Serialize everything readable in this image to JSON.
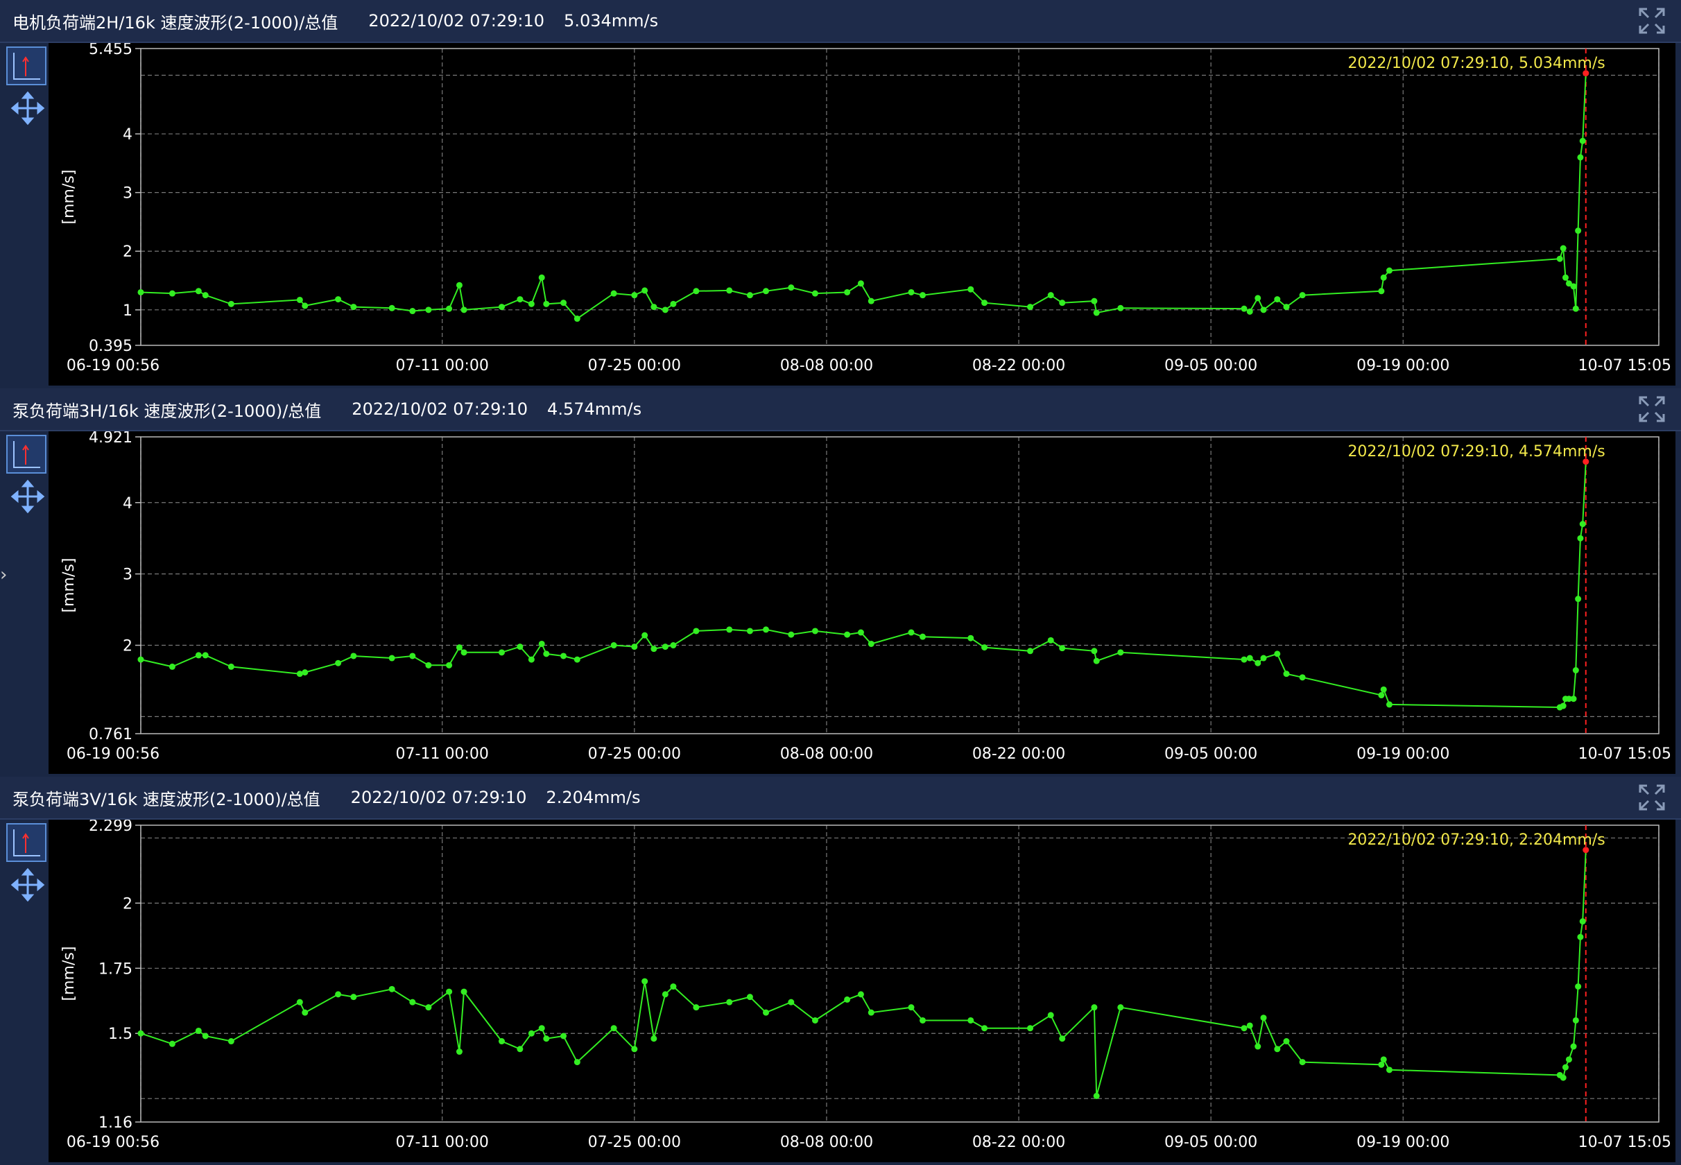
{
  "chart_data": [
    {
      "type": "line",
      "title": "电机负荷端2H/16k 速度波形(2-1000)/总值",
      "subtitle": "2022/10/02 07:29:10",
      "value_text": "5.034mm/s",
      "annotation": "2022/10/02 07:29:10, 5.034mm/s",
      "y_label": "[mm/s]",
      "xlim": [
        "06-19 00:56",
        "10-07 15:05"
      ],
      "xticks": [
        "06-19 00:56",
        "07-11 00:00",
        "07-25 00:00",
        "08-08 00:00",
        "08-22 00:00",
        "09-05 00:00",
        "09-19 00:00",
        "10-07 15:05"
      ],
      "ylim": [
        0.395,
        5.455
      ],
      "yticks": [
        0.395,
        1,
        2,
        3,
        4,
        5.455
      ],
      "ygrid": [
        1,
        2,
        3,
        4,
        5
      ],
      "grid": true,
      "color": "#33ee22",
      "marker_color": "#ff2020",
      "annotation_color": "#f2e84a",
      "x": [
        "06-19 00:56",
        "06-21 08:00",
        "06-23 06:00",
        "06-23 18:00",
        "06-25 15:00",
        "06-30 15:00",
        "07-01 00:00",
        "07-03 10:00",
        "07-04 13:00",
        "07-07 08:00",
        "07-08 20:00",
        "07-10 00:00",
        "07-11 12:00",
        "07-12 06:00",
        "07-12 14:00",
        "07-15 08:00",
        "07-16 16:00",
        "07-17 12:00",
        "07-18 06:00",
        "07-18 14:00",
        "07-19 20:00",
        "07-20 20:00",
        "07-23 12:00",
        "07-25 00:00",
        "07-25 18:00",
        "07-26 10:00",
        "07-27 06:00",
        "07-27 20:00",
        "07-29 12:00",
        "07-31 22:00",
        "08-02 10:00",
        "08-03 14:00",
        "08-05 10:00",
        "08-07 04:00",
        "08-09 12:00",
        "08-10 12:00",
        "08-11 06:00",
        "08-14 04:00",
        "08-15 00:00",
        "08-18 12:00",
        "08-19 12:00",
        "08-22 20:00",
        "08-24 08:00",
        "08-25 04:00",
        "08-27 12:00",
        "08-27 16:00",
        "08-29 10:00",
        "09-07 10:00",
        "09-07 20:00",
        "09-08 10:00",
        "09-08 20:00",
        "09-09 20:00",
        "09-10 12:00",
        "09-11 16:00",
        "09-17 10:00",
        "09-17 14:00",
        "09-18 00:00",
        "09-30 10:00",
        "09-30 16:00",
        "09-30 20:00",
        "10-01 02:00",
        "10-01 10:00",
        "10-01 14:00",
        "10-01 18:00",
        "10-01 22:00",
        "10-02 02:00",
        "10-02 07:29"
      ],
      "values": [
        1.3,
        1.28,
        1.32,
        1.25,
        1.1,
        1.17,
        1.07,
        1.18,
        1.05,
        1.03,
        0.98,
        1.0,
        1.02,
        1.42,
        1.0,
        1.05,
        1.18,
        1.1,
        1.55,
        1.1,
        1.12,
        0.85,
        1.28,
        1.25,
        1.33,
        1.05,
        1.0,
        1.1,
        1.32,
        1.33,
        1.25,
        1.32,
        1.38,
        1.28,
        1.3,
        1.45,
        1.15,
        1.3,
        1.25,
        1.35,
        1.12,
        1.05,
        1.25,
        1.12,
        1.15,
        0.95,
        1.03,
        1.02,
        0.97,
        1.2,
        1.0,
        1.18,
        1.05,
        1.25,
        1.32,
        1.55,
        1.67,
        1.87,
        2.05,
        1.55,
        1.45,
        1.4,
        1.02,
        2.35,
        3.6,
        3.88,
        5.034
      ]
    },
    {
      "type": "line",
      "title": "泵负荷端3H/16k 速度波形(2-1000)/总值",
      "subtitle": "2022/10/02 07:29:10",
      "value_text": "4.574mm/s",
      "annotation": "2022/10/02 07:29:10, 4.574mm/s",
      "y_label": "[mm/s]",
      "xlim": [
        "06-19 00:56",
        "10-07 15:05"
      ],
      "xticks": [
        "06-19 00:56",
        "07-11 00:00",
        "07-25 00:00",
        "08-08 00:00",
        "08-22 00:00",
        "09-05 00:00",
        "09-19 00:00",
        "10-07 15:05"
      ],
      "ylim": [
        0.761,
        4.921
      ],
      "yticks": [
        0.761,
        2,
        3,
        4,
        4.921
      ],
      "ygrid": [
        1,
        2,
        3,
        4
      ],
      "grid": true,
      "color": "#33ee22",
      "marker_color": "#ff2020",
      "annotation_color": "#f2e84a",
      "x": [
        "06-19 00:56",
        "06-21 08:00",
        "06-23 06:00",
        "06-23 18:00",
        "06-25 15:00",
        "06-30 15:00",
        "07-01 00:00",
        "07-03 10:00",
        "07-04 13:00",
        "07-07 08:00",
        "07-08 20:00",
        "07-10 00:00",
        "07-11 12:00",
        "07-12 06:00",
        "07-12 14:00",
        "07-15 08:00",
        "07-16 16:00",
        "07-17 12:00",
        "07-18 06:00",
        "07-18 14:00",
        "07-19 20:00",
        "07-20 20:00",
        "07-23 12:00",
        "07-25 00:00",
        "07-25 18:00",
        "07-26 10:00",
        "07-27 06:00",
        "07-27 20:00",
        "07-29 12:00",
        "07-31 22:00",
        "08-02 10:00",
        "08-03 14:00",
        "08-05 10:00",
        "08-07 04:00",
        "08-09 12:00",
        "08-10 12:00",
        "08-11 06:00",
        "08-14 04:00",
        "08-15 00:00",
        "08-18 12:00",
        "08-19 12:00",
        "08-22 20:00",
        "08-24 08:00",
        "08-25 04:00",
        "08-27 12:00",
        "08-27 16:00",
        "08-29 10:00",
        "09-07 10:00",
        "09-07 20:00",
        "09-08 10:00",
        "09-08 20:00",
        "09-09 20:00",
        "09-10 12:00",
        "09-11 16:00",
        "09-17 10:00",
        "09-17 14:00",
        "09-18 00:00",
        "09-30 10:00",
        "09-30 16:00",
        "09-30 20:00",
        "10-01 02:00",
        "10-01 10:00",
        "10-01 14:00",
        "10-01 18:00",
        "10-01 22:00",
        "10-02 02:00",
        "10-02 07:29"
      ],
      "values": [
        1.8,
        1.7,
        1.86,
        1.86,
        1.7,
        1.6,
        1.62,
        1.75,
        1.85,
        1.82,
        1.85,
        1.72,
        1.72,
        1.97,
        1.9,
        1.9,
        1.98,
        1.8,
        2.02,
        1.88,
        1.85,
        1.8,
        2.0,
        1.98,
        2.14,
        1.95,
        1.98,
        2.0,
        2.2,
        2.22,
        2.2,
        2.22,
        2.15,
        2.2,
        2.15,
        2.18,
        2.02,
        2.18,
        2.12,
        2.1,
        1.97,
        1.92,
        2.07,
        1.96,
        1.92,
        1.78,
        1.9,
        1.8,
        1.82,
        1.75,
        1.82,
        1.88,
        1.6,
        1.55,
        1.3,
        1.38,
        1.17,
        1.13,
        1.15,
        1.25,
        1.25,
        1.25,
        1.65,
        2.65,
        3.5,
        3.7,
        4.574
      ]
    },
    {
      "type": "line",
      "title": "泵负荷端3V/16k 速度波形(2-1000)/总值",
      "subtitle": "2022/10/02 07:29:10",
      "value_text": "2.204mm/s",
      "annotation": "2022/10/02 07:29:10, 2.204mm/s",
      "y_label": "[mm/s]",
      "xlim": [
        "06-19 00:56",
        "10-07 15:05"
      ],
      "xticks": [
        "06-19 00:56",
        "07-11 00:00",
        "07-25 00:00",
        "08-08 00:00",
        "08-22 00:00",
        "09-05 00:00",
        "09-19 00:00",
        "10-07 15:05"
      ],
      "ylim": [
        1.16,
        2.299
      ],
      "yticks": [
        1.16,
        1.5,
        1.75,
        2,
        2.299
      ],
      "ygrid": [
        1.25,
        1.5,
        1.75,
        2,
        2.25
      ],
      "grid": true,
      "color": "#33ee22",
      "marker_color": "#ff2020",
      "annotation_color": "#f2e84a",
      "x": [
        "06-19 00:56",
        "06-21 08:00",
        "06-23 06:00",
        "06-23 18:00",
        "06-25 15:00",
        "06-30 15:00",
        "07-01 00:00",
        "07-03 10:00",
        "07-04 13:00",
        "07-07 08:00",
        "07-08 20:00",
        "07-10 00:00",
        "07-11 12:00",
        "07-12 06:00",
        "07-12 14:00",
        "07-15 08:00",
        "07-16 16:00",
        "07-17 12:00",
        "07-18 06:00",
        "07-18 14:00",
        "07-19 20:00",
        "07-20 20:00",
        "07-23 12:00",
        "07-25 00:00",
        "07-25 18:00",
        "07-26 10:00",
        "07-27 06:00",
        "07-27 20:00",
        "07-29 12:00",
        "07-31 22:00",
        "08-02 10:00",
        "08-03 14:00",
        "08-05 10:00",
        "08-07 04:00",
        "08-09 12:00",
        "08-10 12:00",
        "08-11 06:00",
        "08-14 04:00",
        "08-15 00:00",
        "08-18 12:00",
        "08-19 12:00",
        "08-22 20:00",
        "08-24 08:00",
        "08-25 04:00",
        "08-27 12:00",
        "08-27 16:00",
        "08-29 10:00",
        "09-07 10:00",
        "09-07 20:00",
        "09-08 10:00",
        "09-08 20:00",
        "09-09 20:00",
        "09-10 12:00",
        "09-11 16:00",
        "09-17 10:00",
        "09-17 14:00",
        "09-18 00:00",
        "09-30 10:00",
        "09-30 16:00",
        "09-30 20:00",
        "10-01 02:00",
        "10-01 10:00",
        "10-01 14:00",
        "10-01 18:00",
        "10-01 22:00",
        "10-02 02:00",
        "10-02 07:29"
      ],
      "values": [
        1.5,
        1.46,
        1.51,
        1.49,
        1.47,
        1.62,
        1.58,
        1.65,
        1.64,
        1.67,
        1.62,
        1.6,
        1.66,
        1.43,
        1.66,
        1.47,
        1.44,
        1.5,
        1.52,
        1.48,
        1.49,
        1.39,
        1.52,
        1.44,
        1.7,
        1.48,
        1.65,
        1.68,
        1.6,
        1.62,
        1.64,
        1.58,
        1.62,
        1.55,
        1.63,
        1.65,
        1.58,
        1.6,
        1.55,
        1.55,
        1.52,
        1.52,
        1.57,
        1.48,
        1.6,
        1.26,
        1.6,
        1.52,
        1.53,
        1.45,
        1.56,
        1.44,
        1.47,
        1.39,
        1.38,
        1.4,
        1.36,
        1.34,
        1.33,
        1.37,
        1.4,
        1.45,
        1.55,
        1.68,
        1.87,
        1.93,
        2.204
      ]
    }
  ]
}
